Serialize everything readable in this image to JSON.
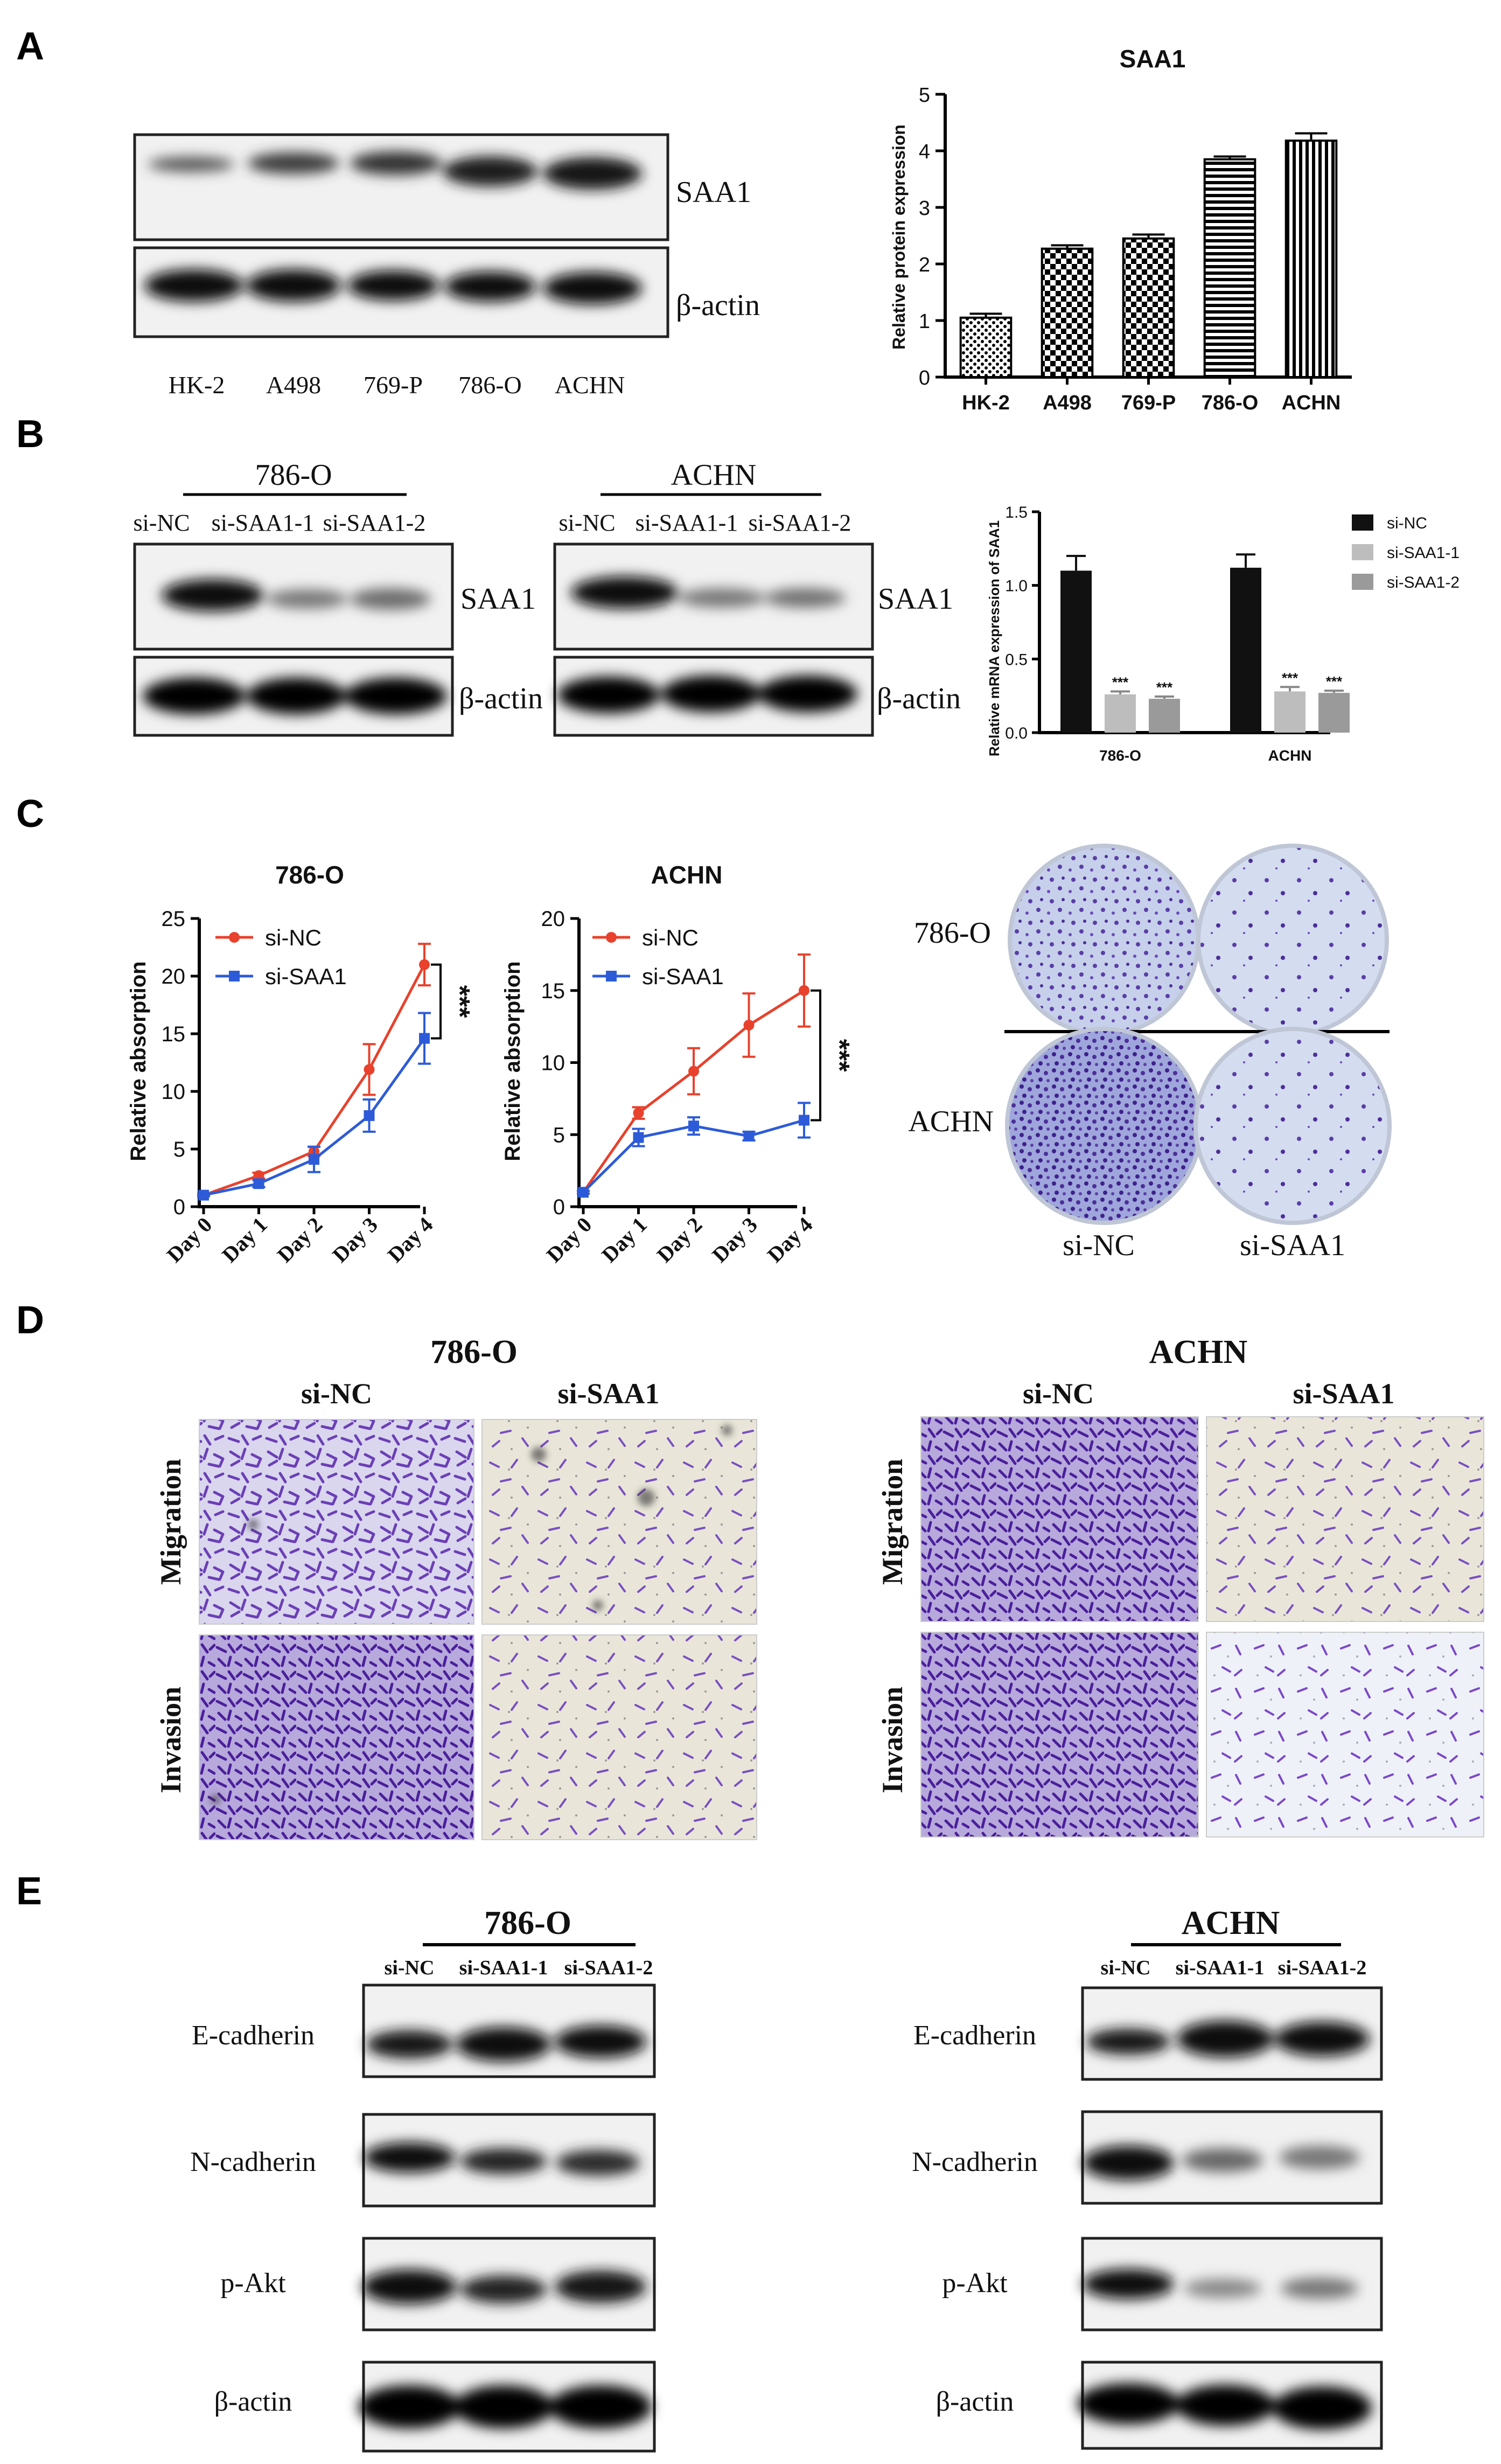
{
  "panels": {
    "A": "A",
    "B": "B",
    "C": "C",
    "D": "D",
    "E": "E"
  },
  "panel_a": {
    "blot_labels": [
      "SAA1",
      "β-actin"
    ],
    "lanes": [
      "HK-2",
      "A498",
      "769-P",
      "786-O",
      "ACHN"
    ]
  },
  "panel_b": {
    "left_cell": "786-O",
    "right_cell": "ACHN",
    "lanes": [
      "si-NC",
      "si-SAA1-1",
      "si-SAA1-2"
    ],
    "blot_labels": [
      "SAA1",
      "β-actin"
    ]
  },
  "panel_c": {
    "colony_rows": [
      "786-O",
      "ACHN"
    ],
    "colony_cols": [
      "si-NC",
      "si-SAA1"
    ]
  },
  "panel_d": {
    "left_title": "786-O",
    "right_title": "ACHN",
    "cols": [
      "si-NC",
      "si-SAA1"
    ],
    "rows": [
      "Migration",
      "Invasion"
    ]
  },
  "panel_e": {
    "left_title": "786-O",
    "right_title": "ACHN",
    "lanes": [
      "si-NC",
      "si-SAA1-1",
      "si-SAA1-2"
    ],
    "proteins": [
      "E-cadherin",
      "N-cadherin",
      "p-Akt",
      "β-actin"
    ]
  },
  "chart_data": [
    {
      "id": "a_bar",
      "type": "bar",
      "title": "SAA1",
      "xlabel": "",
      "ylabel": "Relative protein expression",
      "categories": [
        "HK-2",
        "A498",
        "769-P",
        "786-O",
        "ACHN"
      ],
      "values": [
        1.05,
        2.27,
        2.45,
        3.85,
        4.18
      ],
      "errors": [
        0.07,
        0.06,
        0.07,
        0.05,
        0.13
      ],
      "ylim": [
        0,
        5
      ],
      "yticks": [
        "0",
        "1",
        "2",
        "3",
        "4",
        "5"
      ]
    },
    {
      "id": "b_bar",
      "type": "bar",
      "title": "",
      "xlabel": "",
      "ylabel": "Relative mRNA expression of SAA1",
      "categories": [
        "786-O",
        "ACHN"
      ],
      "series": [
        {
          "name": "si-NC",
          "values": [
            1.1,
            1.12
          ],
          "errors": [
            0.1,
            0.09
          ],
          "color": "#111111"
        },
        {
          "name": "si-SAA1-1",
          "values": [
            0.26,
            0.28
          ],
          "errors": [
            0.02,
            0.03
          ],
          "color": "#bdbdbd"
        },
        {
          "name": "si-SAA1-2",
          "values": [
            0.23,
            0.27
          ],
          "errors": [
            0.015,
            0.015
          ],
          "color": "#9a9a9a"
        }
      ],
      "significance": [
        "***",
        "***",
        "***",
        "***"
      ],
      "ylim": [
        0,
        1.5
      ],
      "yticks": [
        "0.0",
        "0.5",
        "1.0",
        "1.5"
      ]
    },
    {
      "id": "c_line_786o",
      "type": "line",
      "title": "786-O",
      "xlabel": "",
      "ylabel": "Relative absorption",
      "x": [
        "Day 0",
        "Day 1",
        "Day 2",
        "Day 3",
        "Day 4"
      ],
      "series": [
        {
          "name": "si-NC",
          "values": [
            1.0,
            2.7,
            4.8,
            11.9,
            21.0
          ],
          "errors": [
            0.1,
            0.25,
            0.4,
            2.2,
            1.8
          ],
          "color": "#e8412c"
        },
        {
          "name": "si-SAA1",
          "values": [
            1.0,
            2.0,
            4.1,
            7.9,
            14.6
          ],
          "errors": [
            0.1,
            0.3,
            1.1,
            1.4,
            2.2
          ],
          "color": "#2d5bd8"
        }
      ],
      "significance": "***",
      "ylim": [
        0,
        25
      ],
      "yticks": [
        "0",
        "5",
        "10",
        "15",
        "20",
        "25"
      ]
    },
    {
      "id": "c_line_achn",
      "type": "line",
      "title": "ACHN",
      "xlabel": "",
      "ylabel": "Relative absorption",
      "x": [
        "Day 0",
        "Day 1",
        "Day 2",
        "Day 3",
        "Day 4"
      ],
      "series": [
        {
          "name": "si-NC",
          "values": [
            1.0,
            6.5,
            9.4,
            12.6,
            15.0
          ],
          "errors": [
            0.1,
            0.4,
            1.6,
            2.2,
            2.5
          ],
          "color": "#e8412c"
        },
        {
          "name": "si-SAA1",
          "values": [
            1.0,
            4.8,
            5.6,
            4.9,
            6.0
          ],
          "errors": [
            0.1,
            0.6,
            0.6,
            0.3,
            1.2
          ],
          "color": "#2d5bd8"
        }
      ],
      "significance": "***",
      "ylim": [
        0,
        20
      ],
      "yticks": [
        "0",
        "5",
        "10",
        "15",
        "20"
      ]
    }
  ]
}
